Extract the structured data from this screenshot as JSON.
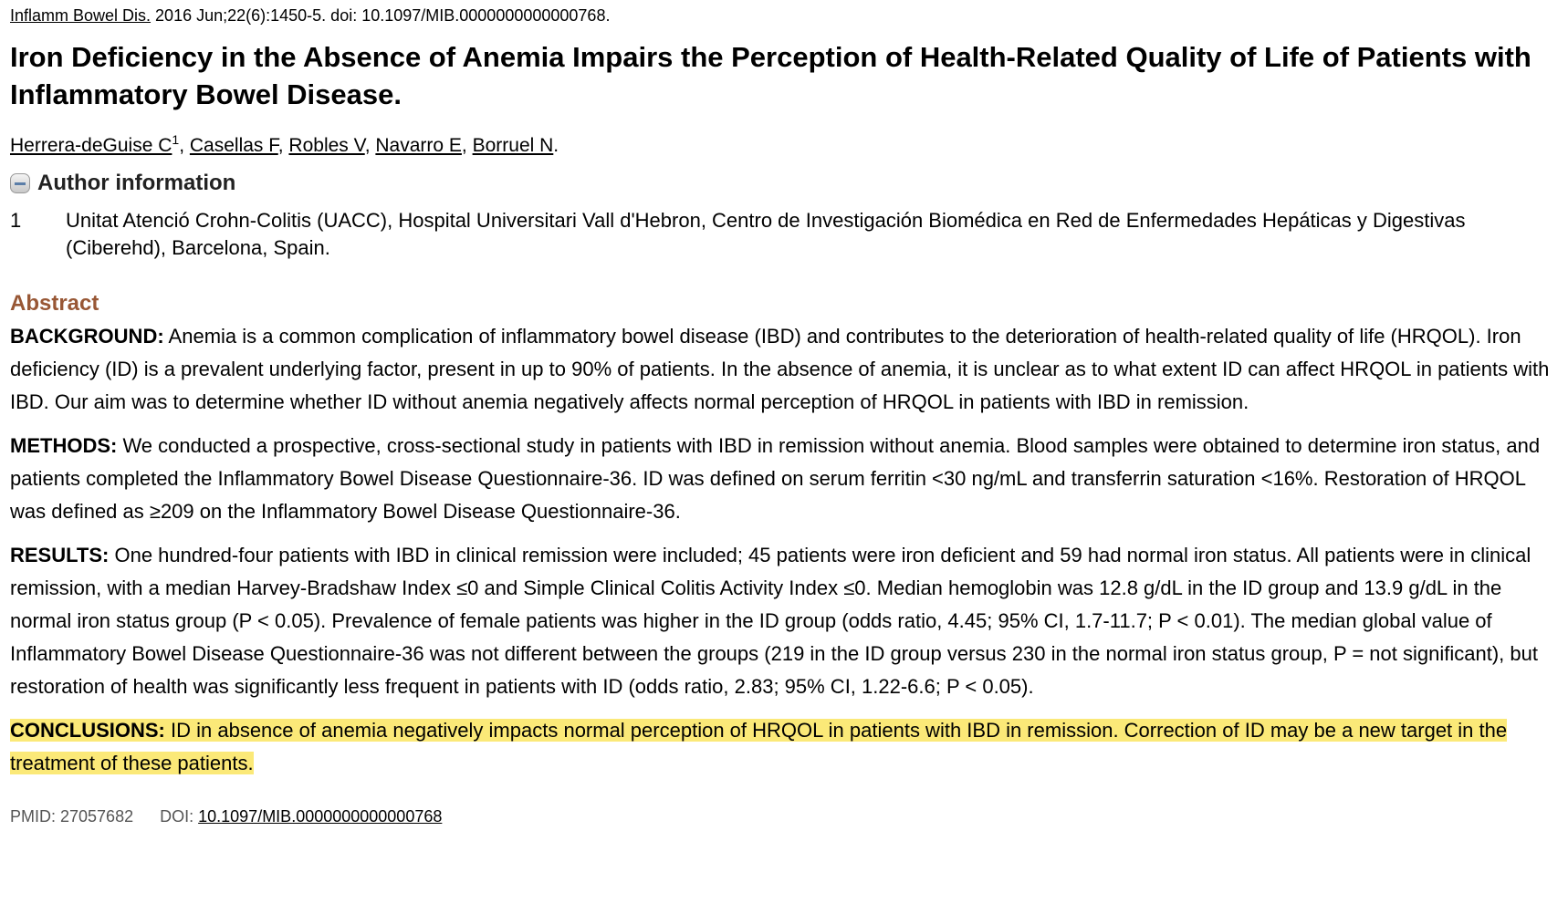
{
  "citation": {
    "journal": "Inflamm Bowel Dis.",
    "details": " 2016 Jun;22(6):1450-5. doi: 10.1097/MIB.0000000000000768."
  },
  "title": "Iron Deficiency in the Absence of Anemia Impairs the Perception of Health-Related Quality of Life of Patients with Inflammatory Bowel Disease.",
  "authors": [
    {
      "name": "Herrera-deGuise C",
      "sup": "1"
    },
    {
      "name": "Casellas F"
    },
    {
      "name": "Robles V"
    },
    {
      "name": "Navarro E"
    },
    {
      "name": "Borruel N"
    }
  ],
  "author_info": {
    "label": "Author information",
    "affiliations": [
      {
        "num": "1",
        "text": "Unitat Atenció Crohn-Colitis (UACC), Hospital Universitari Vall d'Hebron, Centro de Investigación Biomédica en Red de Enfermedades Hepáticas y Digestivas (Ciberehd), Barcelona, Spain."
      }
    ]
  },
  "abstract": {
    "heading": "Abstract",
    "sections": [
      {
        "label": "BACKGROUND:",
        "text": " Anemia is a common complication of inflammatory bowel disease (IBD) and contributes to the deterioration of health-related quality of life (HRQOL). Iron deficiency (ID) is a prevalent underlying factor, present in up to 90% of patients. In the absence of anemia, it is unclear as to what extent ID can affect HRQOL in patients with IBD. Our aim was to determine whether ID without anemia negatively affects normal perception of HRQOL in patients with IBD in remission."
      },
      {
        "label": "METHODS:",
        "text": " We conducted a prospective, cross-sectional study in patients with IBD in remission without anemia. Blood samples were obtained to determine iron status, and patients completed the Inflammatory Bowel Disease Questionnaire-36. ID was defined on serum ferritin <30 ng/mL and transferrin saturation <16%. Restoration of HRQOL was defined as ≥209 on the Inflammatory Bowel Disease Questionnaire-36."
      },
      {
        "label": "RESULTS:",
        "text": " One hundred-four patients with IBD in clinical remission were included; 45 patients were iron deficient and 59 had normal iron status. All patients were in clinical remission, with a median Harvey-Bradshaw Index ≤0 and Simple Clinical Colitis Activity Index ≤0. Median hemoglobin was 12.8 g/dL in the ID group and 13.9 g/dL in the normal iron status group (P < 0.05). Prevalence of female patients was higher in the ID group (odds ratio, 4.45; 95% CI, 1.7-11.7; P < 0.01). The median global value of Inflammatory Bowel Disease Questionnaire-36 was not different between the groups (219 in the ID group versus 230 in the normal iron status group, P = not significant), but restoration of health was significantly less frequent in patients with ID (odds ratio, 2.83; 95% CI, 1.22-6.6; P < 0.05)."
      },
      {
        "label": "CONCLUSIONS:",
        "text": " ID in absence of anemia negatively impacts normal perception of HRQOL in patients with IBD in remission. Correction of ID may be a new target in the treatment of these patients."
      }
    ]
  },
  "footer": {
    "pmid": "PMID: 27057682",
    "doi_label": "DOI: ",
    "doi": "10.1097/MIB.0000000000000768"
  },
  "colors": {
    "abstract_heading": "#985735",
    "highlight": "#fbe978"
  }
}
